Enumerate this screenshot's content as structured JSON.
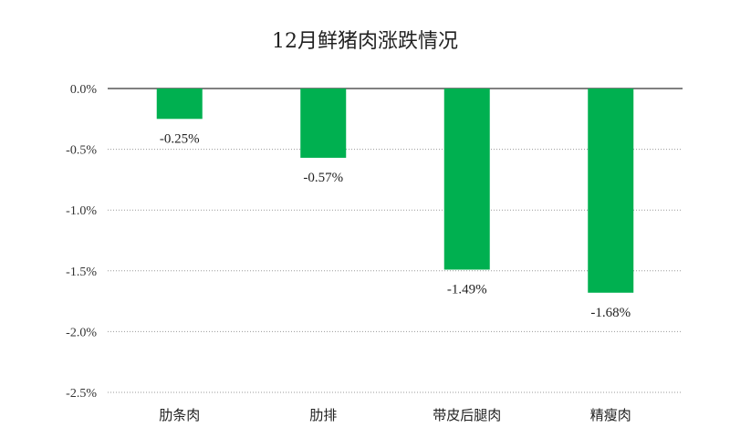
{
  "chart_data": {
    "type": "bar",
    "title": "12月鲜猪肉涨跌情况",
    "categories": [
      "肋条肉",
      "肋排",
      "带皮后腿肉",
      "精瘦肉"
    ],
    "series": [
      {
        "values": [
          -0.25,
          -0.57,
          -1.49,
          -1.68
        ]
      }
    ],
    "data_labels": [
      "-0.25%",
      "-0.57%",
      "-1.49%",
      "-1.68%"
    ],
    "yticks": [
      0.0,
      -0.5,
      -1.0,
      -1.5,
      -2.0,
      -2.5
    ],
    "ytick_labels": [
      "0.0%",
      "-0.5%",
      "-1.0%",
      "-1.5%",
      "-2.0%",
      "-2.5%"
    ],
    "ylim": [
      -2.5,
      0.0
    ],
    "xlabel": "",
    "ylabel": "",
    "grid": true,
    "legend": "none",
    "bar_color": "#00b050"
  }
}
